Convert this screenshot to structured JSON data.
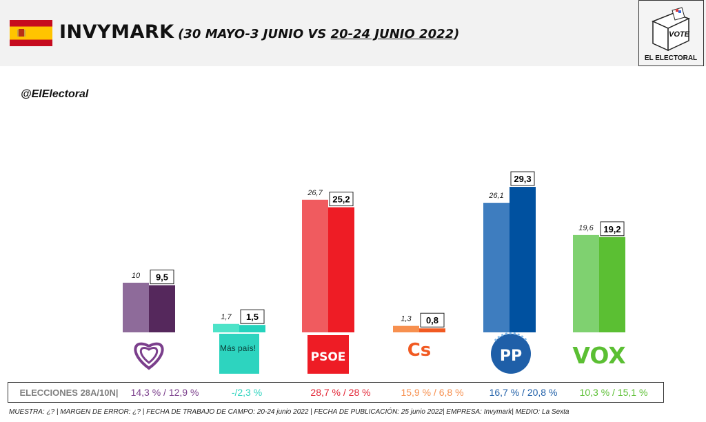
{
  "header": {
    "title": "INVYMARK",
    "date_prev": "(30 MAYO-3 JUNIO VS ",
    "date_current": "20-24 JUNIO 2022",
    "date_close": ")",
    "handle": "@ElElectoral"
  },
  "logo": {
    "vote_text": "VOTE",
    "brand_text": "EL ELECTORAL"
  },
  "chart_data": {
    "type": "bar",
    "categories": [
      "Podemos",
      "Más País",
      "PSOE",
      "Cs",
      "PP",
      "VOX"
    ],
    "category_display": [
      "",
      "Más país!",
      "PSOE",
      "Cs",
      "PP",
      "VOX"
    ],
    "series": [
      {
        "values": [
          10,
          1.7,
          26.7,
          1.3,
          26.1,
          19.6
        ]
      },
      {
        "values": [
          9.5,
          1.5,
          25.2,
          0.8,
          29.3,
          19.2
        ]
      }
    ],
    "value_labels_prev": [
      "10",
      "1,7",
      "26,7",
      "1,3",
      "26,1",
      "19,6"
    ],
    "value_labels_current": [
      "9,5",
      "1,5",
      "25,2",
      "0,8",
      "29,3",
      "19,2"
    ],
    "colors_prev": [
      "#8e6b9a",
      "#4de3c8",
      "#f05b5f",
      "#f7904f",
      "#3e7dbf",
      "#7fd170"
    ],
    "colors_current": [
      "#55285c",
      "#24d3bd",
      "#ee1c25",
      "#f15a22",
      "#0051a0",
      "#5bbf33"
    ],
    "ylim": [
      0,
      30
    ],
    "grid": false,
    "xlabel": "",
    "ylabel": ""
  },
  "results": {
    "label": "ELECCIONES 28A/10N|",
    "values": [
      "14,3 % / 12,9 %",
      "-/2,3 %",
      "28,7  % / 28 %",
      "15,9 % / 6,8 %",
      "16,7 % / 20,8 %",
      "10,3 % / 15,1 %"
    ],
    "colors": [
      "#7b3f8c",
      "#2dd4bf",
      "#e32636",
      "#f7904f",
      "#1f5fa8",
      "#5bbf33"
    ]
  },
  "footnote": "MUESTRA: ¿? | MARGEN DE ERROR: ¿? | FECHA DE TRABAJO DE CAMPO: 20-24 junio 2022 | FECHA DE PUBLICACIÓN: 25 junio 2022| EMPRESA: Invymark| MEDIO: La Sexta"
}
